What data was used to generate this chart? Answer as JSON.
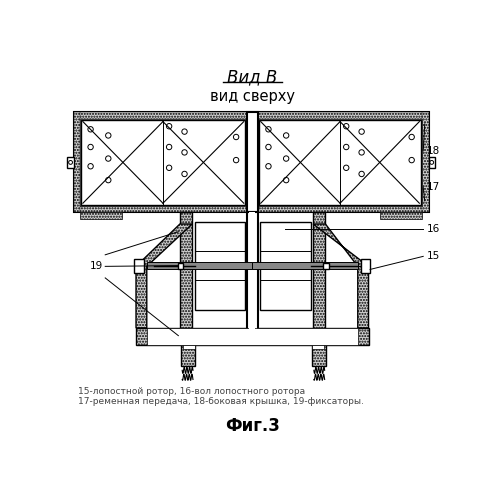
{
  "title_line1": "Вид В",
  "title_line2": "вид сверху",
  "caption_line1": "15-лопостной ротор, 16-вол лопостного ротора",
  "caption_line2": "17-ременная передача, 18-боковая крышка, 19-фиксаторы.",
  "fig_label": "Фиг.3",
  "bg_color": "#ffffff"
}
